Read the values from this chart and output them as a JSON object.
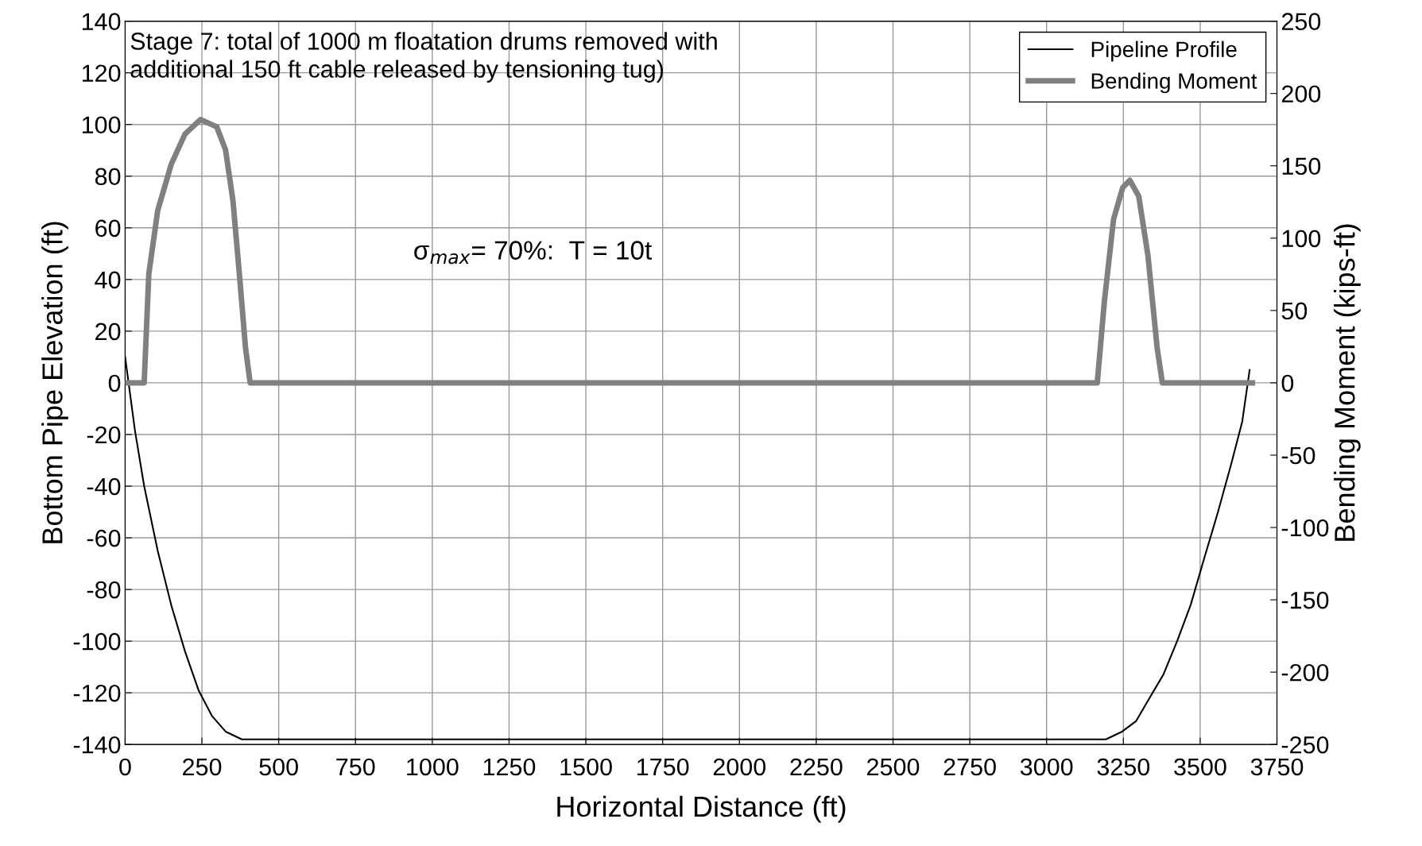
{
  "chart_data": {
    "type": "line",
    "xlabel": "Horizontal Distance (ft)",
    "ylabel": "Bottom Pipe Elevation (ft)",
    "y2label": "Bending Moment (kips-ft)",
    "xlim": [
      0,
      3750
    ],
    "xticks": [
      0,
      250,
      500,
      750,
      1000,
      1250,
      1500,
      1750,
      2000,
      2250,
      2500,
      2750,
      3000,
      3250,
      3500,
      3750
    ],
    "ylim": [
      -140,
      140
    ],
    "yticks": [
      -140,
      -120,
      -100,
      -80,
      -60,
      -40,
      -20,
      0,
      20,
      40,
      60,
      80,
      100,
      120,
      140
    ],
    "y2lim": [
      -250,
      250
    ],
    "y2ticks": [
      -250,
      -200,
      -150,
      -100,
      -50,
      0,
      50,
      100,
      150,
      200,
      250
    ],
    "grid": true,
    "legend": "top right",
    "marker": "none",
    "line_style": "solid",
    "annotations": [
      "Stage 7: total of 1000 m floatation drums removed with\nadditional 150 ft cable released by tensioning tug)",
      "σ$_{max}$= 70%:  T = 10t"
    ],
    "series": [
      {
        "name": "Pipeline Profile",
        "color": "#000000",
        "x": [
          0,
          32,
          62,
          106,
          150,
          195,
          239,
          283,
          327,
          380,
          3193,
          3246,
          3291,
          3335,
          3380,
          3425,
          3469,
          3513,
          3558,
          3602,
          3637,
          3661
        ],
        "values": [
          10,
          -18.5,
          -40,
          -65,
          -86,
          -104,
          -119,
          -129,
          -135,
          -138,
          -138,
          -135,
          -131,
          -122,
          -113,
          -100,
          -86,
          -68,
          -50,
          -31,
          -15,
          5
        ]
      },
      {
        "name": "Bending Moment",
        "color": "#808080",
        "axis": "y2",
        "x": [
          0,
          62,
          77,
          106,
          150,
          195,
          245,
          298,
          327,
          351,
          372,
          392,
          407,
          3165,
          3188,
          3218,
          3248,
          3271,
          3300,
          3330,
          3360,
          3377,
          3670
        ],
        "values": [
          0,
          0,
          75,
          119,
          151,
          172,
          182,
          177,
          161,
          126,
          75,
          24,
          0,
          0,
          56,
          113,
          135,
          140,
          129,
          88,
          24,
          0,
          0
        ]
      }
    ]
  }
}
